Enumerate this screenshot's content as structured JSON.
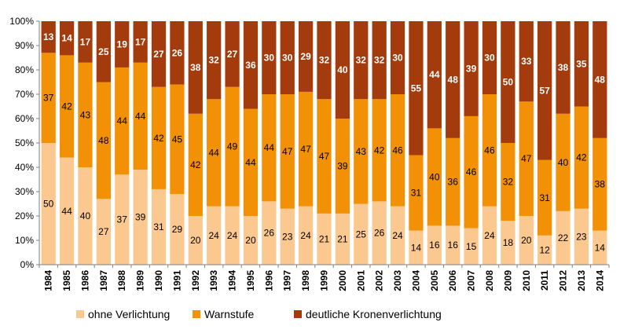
{
  "chart_data": {
    "type": "bar",
    "stacked": true,
    "normalized_percent": true,
    "categories": [
      "1984",
      "1985",
      "1986",
      "1987",
      "1988",
      "1989",
      "1990",
      "1991",
      "1992",
      "1993",
      "1994",
      "1995",
      "1996",
      "1997",
      "1998",
      "1999",
      "2000",
      "2001",
      "2002",
      "2003",
      "2004",
      "2005",
      "2006",
      "2007",
      "2008",
      "2009",
      "2010",
      "2011",
      "2012",
      "2013",
      "2014"
    ],
    "series": [
      {
        "name": "ohne Verlichtung",
        "color": "#FBC990",
        "label_color": "#000000",
        "values": [
          50,
          44,
          40,
          27,
          37,
          39,
          31,
          29,
          20,
          24,
          24,
          20,
          26,
          23,
          24,
          21,
          21,
          25,
          26,
          24,
          14,
          16,
          16,
          15,
          24,
          18,
          20,
          12,
          22,
          23,
          14
        ]
      },
      {
        "name": "Warnstufe",
        "color": "#F29006",
        "label_color": "#000000",
        "values": [
          37,
          42,
          43,
          48,
          44,
          44,
          42,
          45,
          42,
          44,
          49,
          44,
          44,
          47,
          47,
          47,
          39,
          43,
          42,
          46,
          31,
          40,
          36,
          46,
          46,
          32,
          47,
          31,
          40,
          42,
          38
        ]
      },
      {
        "name": "deutliche Kronenverlichtung",
        "color": "#A33B0C",
        "label_color": "#ffffff",
        "values": [
          13,
          14,
          17,
          25,
          19,
          17,
          27,
          26,
          38,
          32,
          27,
          36,
          30,
          30,
          29,
          32,
          40,
          32,
          32,
          30,
          55,
          44,
          48,
          39,
          30,
          50,
          33,
          57,
          38,
          35,
          48
        ]
      }
    ],
    "y_ticks": [
      "0%",
      "10%",
      "20%",
      "30%",
      "40%",
      "50%",
      "60%",
      "70%",
      "80%",
      "90%",
      "100%"
    ],
    "ylim": [
      0,
      100
    ],
    "title": "",
    "xlabel": "",
    "ylabel": "",
    "grid": false,
    "legend_position": "bottom"
  }
}
